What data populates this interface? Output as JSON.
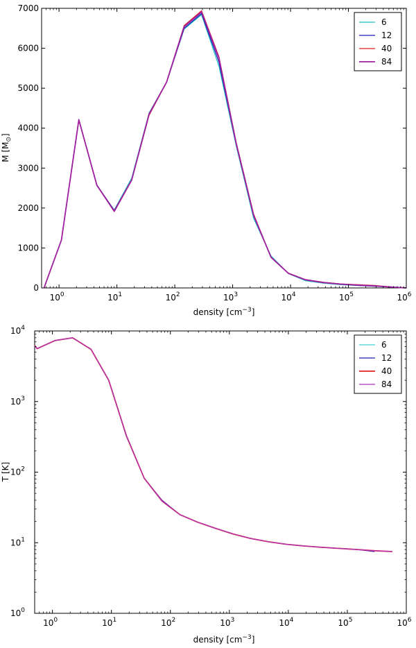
{
  "chart_data": [
    {
      "type": "line",
      "xscale": "log",
      "yscale": "linear",
      "xlabel": "density [cm",
      "xlabel_sup": "−3",
      "xlabel_tail": "]",
      "ylabel": "M [M",
      "ylabel_sub": "⊙",
      "ylabel_tail": "]",
      "xlim": [
        0.5,
        1000000
      ],
      "ylim": [
        0,
        7000
      ],
      "x_ticks": [
        {
          "value": 1,
          "base": "10",
          "exp": "0"
        },
        {
          "value": 10,
          "base": "10",
          "exp": "1"
        },
        {
          "value": 100,
          "base": "10",
          "exp": "2"
        },
        {
          "value": 1000,
          "base": "10",
          "exp": "3"
        },
        {
          "value": 10000,
          "base": "10",
          "exp": "4"
        },
        {
          "value": 100000,
          "base": "10",
          "exp": "5"
        },
        {
          "value": 1000000,
          "base": "10",
          "exp": "6"
        }
      ],
      "y_ticks": [
        {
          "value": 0,
          "label": "0"
        },
        {
          "value": 1000,
          "label": "1000"
        },
        {
          "value": 2000,
          "label": "2000"
        },
        {
          "value": 3000,
          "label": "3000"
        },
        {
          "value": 4000,
          "label": "4000"
        },
        {
          "value": 5000,
          "label": "5000"
        },
        {
          "value": 6000,
          "label": "6000"
        },
        {
          "value": 7000,
          "label": "7000"
        }
      ],
      "grid": false,
      "legend_position": "top-right",
      "series": [
        {
          "name": "6",
          "color": "#1fbfbf",
          "width": 1.2,
          "x": [
            0.55,
            1.1,
            2.2,
            4.5,
            9,
            18,
            36,
            72,
            145,
            290,
            580,
            1150,
            2300,
            4600,
            9200,
            18000,
            37000,
            74000,
            150000,
            290000,
            580000,
            1000000
          ],
          "y": [
            0,
            1200,
            4210,
            2560,
            1950,
            2750,
            4380,
            5150,
            6480,
            6840,
            5550,
            3560,
            1740,
            800,
            360,
            180,
            120,
            80,
            60,
            40,
            20,
            0
          ]
        },
        {
          "name": "12",
          "color": "#1a1ab8",
          "width": 1.2,
          "x": [
            0.55,
            1.1,
            2.2,
            4.5,
            9,
            18,
            36,
            72,
            145,
            290,
            580,
            1150,
            2300,
            4600,
            9200,
            18000,
            37000,
            74000,
            150000,
            290000,
            580000,
            1000000
          ],
          "y": [
            0,
            1200,
            4220,
            2580,
            1940,
            2700,
            4360,
            5140,
            6500,
            6870,
            5650,
            3600,
            1800,
            760,
            360,
            200,
            130,
            90,
            60,
            40,
            20,
            0
          ]
        },
        {
          "name": "40",
          "color": "#e02020",
          "width": 1.2,
          "x": [
            0.55,
            1.1,
            2.2,
            4.5,
            9,
            18,
            36,
            72,
            145,
            290,
            580,
            1150,
            2300,
            4600,
            9200,
            18000,
            37000,
            74000,
            150000,
            290000,
            580000,
            1000000
          ],
          "y": [
            0,
            1200,
            4200,
            2570,
            1910,
            2690,
            4320,
            5150,
            6570,
            6940,
            5790,
            3650,
            1850,
            760,
            370,
            210,
            140,
            100,
            80,
            60,
            20,
            0
          ]
        },
        {
          "name": "84",
          "color": "#a020a0",
          "width": 1.8,
          "x": [
            0.55,
            1.1,
            2.2,
            4.5,
            9,
            18,
            36,
            72,
            145,
            290,
            580,
            1150,
            2300,
            4600,
            9200,
            18000,
            37000,
            74000,
            150000,
            290000,
            580000,
            1000000
          ],
          "y": [
            0,
            1200,
            4210,
            2570,
            1920,
            2700,
            4350,
            5150,
            6540,
            6910,
            5750,
            3620,
            1820,
            770,
            365,
            205,
            135,
            95,
            70,
            50,
            20,
            0
          ]
        }
      ]
    },
    {
      "type": "line",
      "xscale": "log",
      "yscale": "log",
      "xlabel": "density [cm",
      "xlabel_sup": "−3",
      "xlabel_tail": "]",
      "ylabel": "T [K]",
      "xlim": [
        0.5,
        1000000
      ],
      "ylim": [
        1,
        10000
      ],
      "x_ticks": [
        {
          "value": 1,
          "base": "10",
          "exp": "0"
        },
        {
          "value": 10,
          "base": "10",
          "exp": "1"
        },
        {
          "value": 100,
          "base": "10",
          "exp": "2"
        },
        {
          "value": 1000,
          "base": "10",
          "exp": "3"
        },
        {
          "value": 10000,
          "base": "10",
          "exp": "4"
        },
        {
          "value": 100000,
          "base": "10",
          "exp": "5"
        },
        {
          "value": 1000000,
          "base": "10",
          "exp": "6"
        }
      ],
      "y_ticks": [
        {
          "value": 1,
          "base": "10",
          "exp": "0"
        },
        {
          "value": 10,
          "base": "10",
          "exp": "1"
        },
        {
          "value": 100,
          "base": "10",
          "exp": "2"
        },
        {
          "value": 1000,
          "base": "10",
          "exp": "3"
        },
        {
          "value": 10000,
          "base": "10",
          "exp": "4"
        }
      ],
      "grid": false,
      "legend_position": "top-right",
      "series": [
        {
          "name": "6",
          "color": "#40d0d0",
          "width": 1.2,
          "x": [
            0.5,
            0.55,
            1.1,
            2.2,
            4.5,
            9,
            18,
            36,
            72,
            145,
            290,
            580,
            1150,
            2300,
            4600,
            9200,
            18000,
            37000,
            74000,
            150000,
            290000
          ],
          "y": [
            6200,
            5600,
            7300,
            8000,
            5500,
            2000,
            330,
            82,
            39,
            25,
            19.5,
            16,
            13.3,
            11.5,
            10.3,
            9.5,
            9.0,
            8.6,
            8.3,
            8.0,
            7.6
          ]
        },
        {
          "name": "12",
          "color": "#1a1ab8",
          "width": 1.2,
          "x": [
            0.5,
            0.55,
            1.1,
            2.2,
            4.5,
            9,
            18,
            36,
            72,
            145,
            290,
            580,
            1150,
            2300,
            4600,
            9200,
            18000,
            37000,
            74000,
            150000,
            290000
          ],
          "y": [
            6200,
            5600,
            7300,
            8000,
            5500,
            2000,
            320,
            82,
            40,
            25,
            19.5,
            16,
            13.3,
            11.5,
            10.3,
            9.5,
            9.0,
            8.6,
            8.3,
            8.0,
            7.5
          ]
        },
        {
          "name": "40",
          "color": "#e02020",
          "width": 1.8,
          "x": [
            0.5,
            0.55,
            1.1,
            2.2,
            4.5,
            9,
            18,
            36,
            72,
            145,
            290,
            580,
            1150,
            2300,
            4600,
            9200,
            18000,
            37000,
            74000,
            150000,
            290000,
            580000
          ],
          "y": [
            6200,
            5600,
            7300,
            8000,
            5500,
            2000,
            325,
            82,
            39,
            25,
            19.5,
            16,
            13.3,
            11.5,
            10.3,
            9.5,
            9.0,
            8.6,
            8.3,
            8.0,
            7.7,
            7.5
          ]
        },
        {
          "name": "84",
          "color": "#b030c0",
          "width": 1.2,
          "x": [
            0.5,
            0.55,
            1.1,
            2.2,
            4.5,
            9,
            18,
            36,
            72,
            145,
            290,
            580,
            1150,
            2300,
            4600,
            9200,
            18000,
            37000,
            74000,
            150000,
            290000,
            580000
          ],
          "y": [
            6200,
            5600,
            7300,
            8000,
            5500,
            2000,
            325,
            82,
            39,
            25,
            19.5,
            16,
            13.3,
            11.5,
            10.3,
            9.5,
            9.0,
            8.6,
            8.3,
            8.0,
            7.7,
            7.5
          ]
        }
      ]
    }
  ]
}
